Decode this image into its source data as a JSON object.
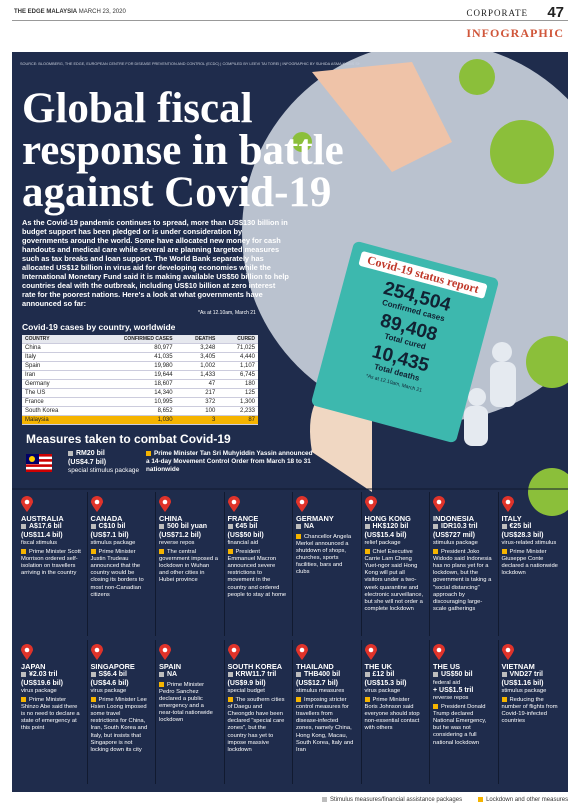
{
  "header": {
    "publication": "THE EDGE MALAYSIA",
    "date": "MARCH 23, 2020",
    "section": "CORPORATE",
    "page": "47",
    "label": "INFOGRAPHIC"
  },
  "source": "SOURCE: BLOOMBERG, THE EDGE, EUROPEAN CENTRE FOR DISEASE PREVENTION AND CONTROL (ECDC) | COMPILED BY LEEVI TAI TOREI | INFOGRAPHIC BY SUHIDA ASMA KAMIS SHUH THE EDGE",
  "title": [
    "Global fiscal",
    "response in battle",
    "against Covid-19"
  ],
  "intro": "As the Covid-19 pandemic continues to spread, more than US$130 billion in budget support has been pledged or is under consideration by governments around the world. Some have allocated new money for cash handouts and medical care while several are planning targeted measures such as tax breaks and loan support. The World Bank separately has allocated US$12 billion in virus aid for developing economies while the International Monetary Fund said it is making available US$50 billion to help countries deal with the outbreak, including US$10 billion at zero interest rate for the poorest nations. Here's a look at what governments have announced so far:",
  "note": "*As at 12.10am, March 21",
  "table": {
    "title": "Covid-19 cases by country, worldwide",
    "columns": [
      "COUNTRY",
      "CONFIRMED CASES",
      "DEATHS",
      "CURED"
    ],
    "rows": [
      [
        "China",
        "80,977",
        "3,248",
        "71,025"
      ],
      [
        "Italy",
        "41,035",
        "3,405",
        "4,440"
      ],
      [
        "Spain",
        "19,980",
        "1,002",
        "1,107"
      ],
      [
        "Iran",
        "19,644",
        "1,433",
        "6,745"
      ],
      [
        "Germany",
        "18,607",
        "47",
        "180"
      ],
      [
        "The US",
        "14,340",
        "217",
        "125"
      ],
      [
        "France",
        "10,995",
        "372",
        "1,300"
      ],
      [
        "South Korea",
        "8,652",
        "100",
        "2,233"
      ],
      [
        "Malaysia",
        "1,030",
        "3",
        "87"
      ]
    ]
  },
  "status_report": {
    "title": "Covid-19 status report",
    "items": [
      {
        "value": "254,504",
        "label": "Confirmed cases"
      },
      {
        "value": "89,408",
        "label": "Total cured"
      },
      {
        "value": "10,435",
        "label": "Total deaths"
      }
    ],
    "note": "*As at 12.10am, March 21"
  },
  "measures": {
    "title": "Measures taken to combat Covid-19",
    "malaysia": {
      "amount": "RM20 bil",
      "usd": "(US$4.7 bil)",
      "type": "special stimulus package",
      "note": "Prime Minister Tan Sri Muhyiddin Yassin announced a 14-day Movement Control Order from March 18 to 31 nationwide"
    },
    "countries": [
      {
        "name": "AUSTRALIA",
        "amount": "A$17.6 bil",
        "usd": "(US$11.4 bil)",
        "type": "fiscal stimulus",
        "note": "Prime Minister Scott Morrison ordered self-isolation on travellers arriving in the country"
      },
      {
        "name": "CANADA",
        "amount": "C$10 bil",
        "usd": "(US$7.1 bil)",
        "type": "stimulus package",
        "note": "Prime Minister Justin Trudeau announced that the country would be closing its borders to most non-Canadian citizens"
      },
      {
        "name": "CHINA",
        "amount": "500 bil yuan",
        "usd": "(US$71.2 bil)",
        "type": "reverse repos",
        "note": "The central government imposed a lockdown in Wuhan and other cities in Hubei province"
      },
      {
        "name": "FRANCE",
        "amount": "€45 bil",
        "usd": "(US$50 bil)",
        "type": "financial aid",
        "note": "President Emmanuel Macron announced severe restrictions to movement in the country and ordered people to stay at home"
      },
      {
        "name": "GERMANY",
        "amount": "NA",
        "note": "Chancellor Angela Merkel announced a shutdown of shops, churches, sports facilities, bars and clubs"
      },
      {
        "name": "HONG KONG",
        "amount": "HK$120 bil",
        "usd": "(US$15.4 bil)",
        "type": "relief package",
        "note": "Chief Executive Carrie Lam Cheng Yuet-ngor said Hong Kong will put all visitors under a two-week quarantine and electronic surveillance, but she will not order a complete lockdown"
      },
      {
        "name": "INDONESIA",
        "amount": "IDR10.3 tril",
        "usd": "(US$727 mil)",
        "type": "stimulus package",
        "note": "President Joko Widodo said Indonesia has no plans yet for a lockdown, but the government is taking a \"social distancing\" approach by discouraging large-scale gatherings"
      },
      {
        "name": "ITALY",
        "amount": "€25 bil",
        "usd": "(US$28.3 bil)",
        "type": "virus-related stimulus",
        "note": "Prime Minister Giuseppe Conte declared a nationwide lockdown"
      },
      {
        "name": "JAPAN",
        "amount": "¥2.03 tril",
        "usd": "(US$19.6 bil)",
        "type": "virus package",
        "note": "Prime Minister Shinzo Abe said there is no need to declare a state of emergency at this point"
      },
      {
        "name": "SINGAPORE",
        "amount": "S$6.4 bil",
        "usd": "(US$4.6 bil)",
        "type": "virus package",
        "note": "Prime Minister Lee Hsien Loong imposed some travel restrictions for China, Iran, South Korea and Italy, but insists that Singapore is not locking down its city"
      },
      {
        "name": "SPAIN",
        "amount": "NA",
        "note": "Prime Minister Pedro Sanchez declared a public emergency and a near-total nationwide lockdown"
      },
      {
        "name": "SOUTH KOREA",
        "amount": "KRW11.7 tril",
        "usd": "(US$9.9 bil)",
        "type": "special budget",
        "note": "The southern cities of Daegu and Cheongdo have been declared \"special care zones\", but the country has yet to impose massive lockdown"
      },
      {
        "name": "THAILAND",
        "amount": "THB400 bil",
        "usd": "(US$12.7 bil)",
        "type": "stimulus measures",
        "note": "Imposing stricter control measures for travellers from disease-infected zones, namely China, Hong Kong, Macau, South Korea, Italy and Iran"
      },
      {
        "name": "THE UK",
        "amount": "£12 bil",
        "usd": "(US$15.3 bil)",
        "type": "virus package",
        "note": "Prime Minister Boris Johnson said everyone should stop non-essential contact with others"
      },
      {
        "name": "THE US",
        "amount": "US$50 bil",
        "type": "federal aid",
        "extra_amount": "+ US$1.5 tril",
        "extra_type": "reverse repos",
        "note": "President Donald Trump declared National Emergency, but he was not considering a full national lockdown"
      },
      {
        "name": "VIETNAM",
        "amount": "VND27 tril",
        "usd": "(US$1.16 bil)",
        "type": "stimulus package",
        "note": "Reducing the number of flights from Covid-19-infected countries"
      }
    ]
  },
  "legend": [
    "Stimulus measures/financial assistance packages",
    "Lockdown and other measures"
  ]
}
